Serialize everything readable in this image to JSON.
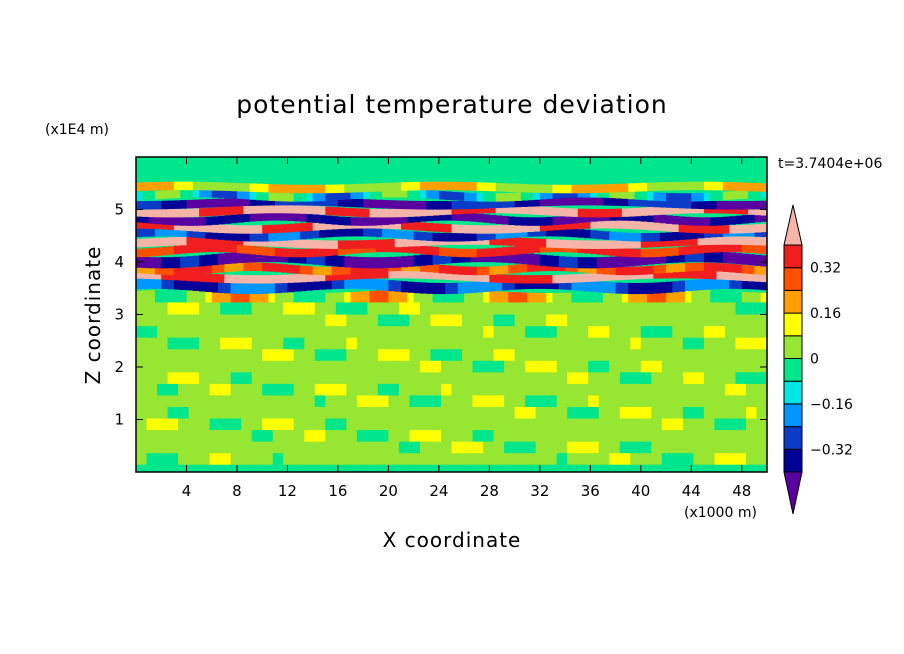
{
  "chart_data": {
    "type": "heatmap",
    "title": "potential temperature deviation",
    "xlabel": "X coordinate",
    "ylabel": "Z coordinate",
    "x_unit": "(x1000 m)",
    "y_unit": "(x1E4 m)",
    "time_label": "t=3.7404e+06",
    "xlim": [
      0,
      50
    ],
    "ylim": [
      0,
      6
    ],
    "x_ticks": [
      4,
      8,
      12,
      16,
      20,
      24,
      28,
      32,
      36,
      40,
      44,
      48
    ],
    "x_tick_labels": [
      "4",
      "8",
      "12",
      "16",
      "20",
      "24",
      "28",
      "32",
      "36",
      "40",
      "44",
      "48"
    ],
    "y_ticks": [
      1,
      2,
      3,
      4,
      5
    ],
    "y_tick_labels": [
      "1",
      "2",
      "3",
      "4",
      "5"
    ],
    "colorbar": {
      "levels": [
        -0.4,
        -0.32,
        -0.24,
        -0.16,
        -0.08,
        0,
        0.08,
        0.16,
        0.24,
        0.32,
        0.4
      ],
      "colors": [
        "#5a00a0",
        "#000096",
        "#0a3cc8",
        "#0096ff",
        "#00e6e6",
        "#00e68c",
        "#96e632",
        "#ffff00",
        "#ffa000",
        "#ff5000",
        "#f01e1e",
        "#f4b4a8"
      ],
      "tick_values": [
        0.32,
        0.16,
        0,
        -0.16,
        -0.32
      ],
      "tick_labels": [
        "0.32",
        "0.16",
        "0",
        "−0.16",
        "−0.32"
      ]
    },
    "bands": [
      {
        "z_lo": 3.2,
        "z_hi": 3.45,
        "value": 0.1,
        "trend": -0.15,
        "wavelength": 11,
        "wiggle": 0.04
      },
      {
        "z_lo": 3.45,
        "z_hi": 3.65,
        "value": -0.28,
        "trend": 0.1,
        "wavelength": 9,
        "wiggle": 0.05
      },
      {
        "z_lo": 3.65,
        "z_hi": 3.8,
        "value": 0.42,
        "trend": 0.05,
        "wavelength": 13,
        "wiggle": 0.05
      },
      {
        "z_lo": 3.8,
        "z_hi": 3.95,
        "value": 0.3,
        "trend": 0.08,
        "wavelength": 7,
        "wiggle": 0.04
      },
      {
        "z_lo": 3.95,
        "z_hi": 4.15,
        "value": -0.42,
        "trend": 0.12,
        "wavelength": 10,
        "wiggle": 0.06
      },
      {
        "z_lo": 4.15,
        "z_hi": 4.3,
        "value": 0.34,
        "trend": -0.05,
        "wavelength": 8,
        "wiggle": 0.05
      },
      {
        "z_lo": 4.3,
        "z_hi": 4.45,
        "value": 0.42,
        "trend": 0.05,
        "wavelength": 12,
        "wiggle": 0.04
      },
      {
        "z_lo": 4.45,
        "z_hi": 4.6,
        "value": -0.3,
        "trend": -0.08,
        "wavelength": 9,
        "wiggle": 0.05
      },
      {
        "z_lo": 4.6,
        "z_hi": 4.75,
        "value": 0.42,
        "trend": 0.06,
        "wavelength": 11,
        "wiggle": 0.05
      },
      {
        "z_lo": 4.75,
        "z_hi": 4.9,
        "value": -0.42,
        "trend": -0.1,
        "wavelength": 8,
        "wiggle": 0.05
      },
      {
        "z_lo": 4.9,
        "z_hi": 5.05,
        "value": 0.42,
        "trend": 0.04,
        "wavelength": 10,
        "wiggle": 0.04
      },
      {
        "z_lo": 5.05,
        "z_hi": 5.2,
        "value": -0.36,
        "trend": 0.1,
        "wavelength": 14,
        "wiggle": 0.04
      },
      {
        "z_lo": 5.2,
        "z_hi": 5.35,
        "value": -0.12,
        "trend": -0.15,
        "wavelength": 9,
        "wiggle": 0.04
      },
      {
        "z_lo": 5.35,
        "z_hi": 5.5,
        "value": 0.12,
        "trend": -0.12,
        "wavelength": 12,
        "wiggle": 0.03
      }
    ],
    "background": {
      "value": 0.04,
      "trend": -0.06,
      "wavelength": 9
    }
  }
}
